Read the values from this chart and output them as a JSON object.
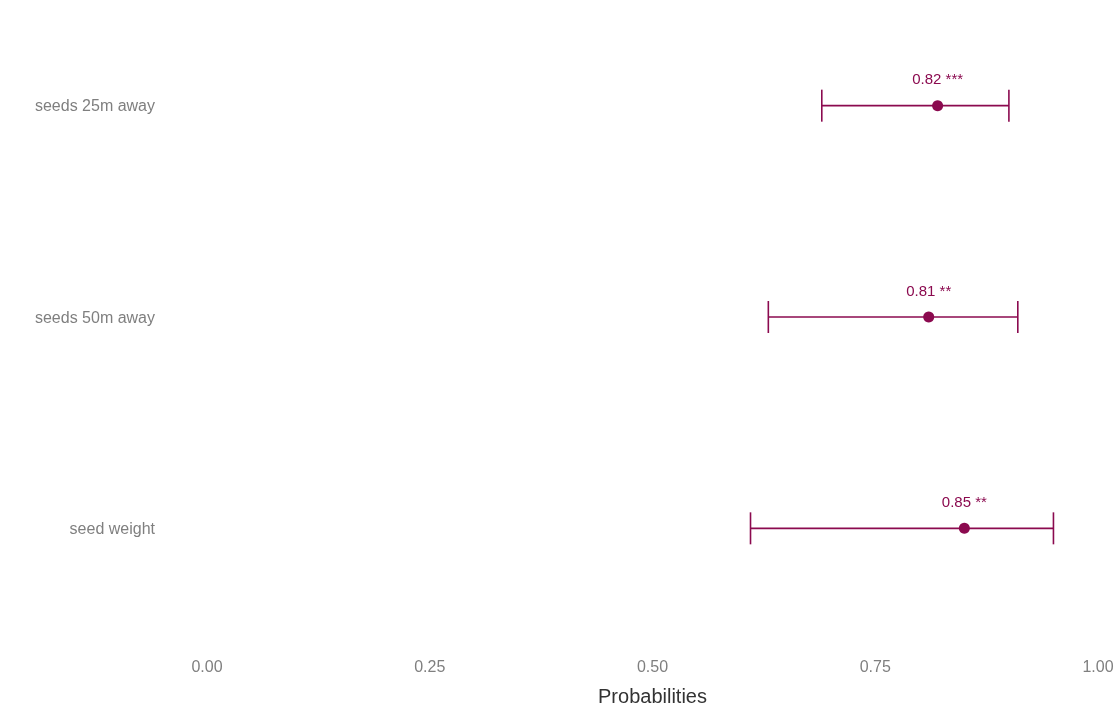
{
  "chart_data": {
    "type": "scatter",
    "orientation": "horizontal",
    "xlabel": "Probabilities",
    "categories": [
      "seeds 25m away",
      "seeds 50m away",
      "seed weight"
    ],
    "series": [
      {
        "color": "#8b0a4f",
        "values": [
          0.82,
          0.81,
          0.85
        ],
        "errors": [
          [
            0.69,
            0.9
          ],
          [
            0.63,
            0.91
          ],
          [
            0.61,
            0.95
          ]
        ],
        "value_labels": [
          "0.82 ***",
          "0.81 **",
          "0.85 **"
        ]
      }
    ],
    "xlim": [
      0,
      1
    ],
    "xticks": [
      {
        "value": 0,
        "label": "0.00"
      },
      {
        "value": 0.25,
        "label": "0.25"
      },
      {
        "value": 0.5,
        "label": "0.50"
      },
      {
        "value": 0.75,
        "label": "0.75"
      },
      {
        "value": 1,
        "label": "1.00"
      }
    ],
    "grid": false,
    "marker": "circle"
  }
}
